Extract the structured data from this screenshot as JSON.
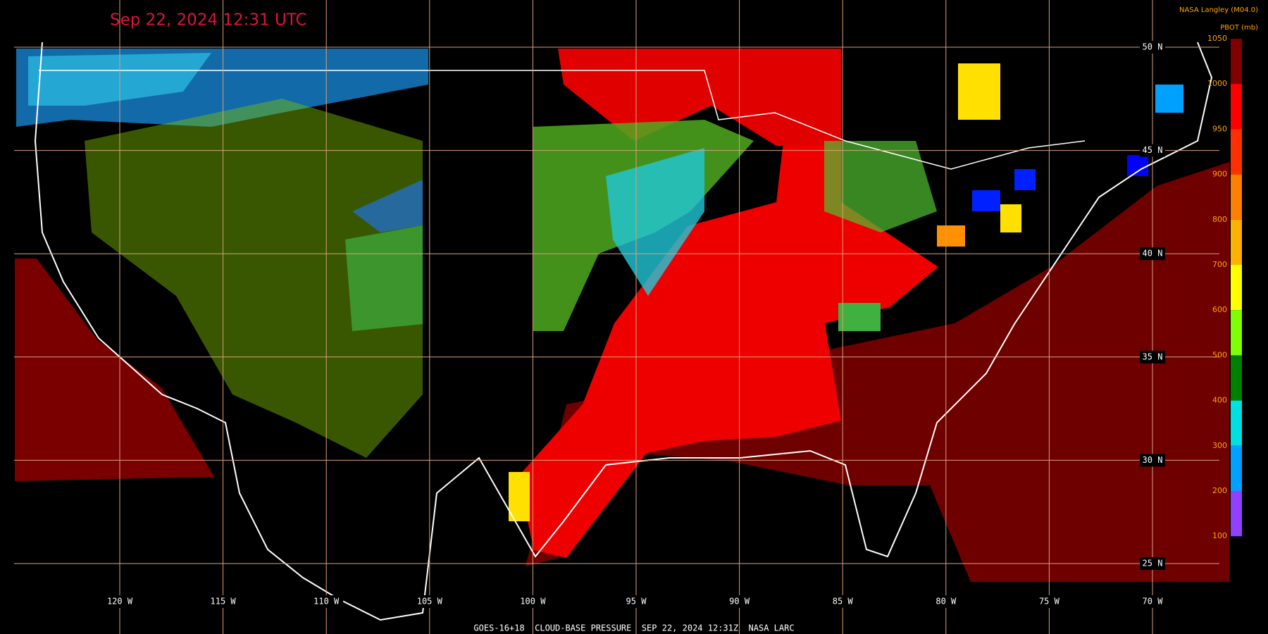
{
  "header": {
    "timestamp": "Sep 22, 2024 12:31 UTC",
    "credit": "NASA Langley (M04.0)"
  },
  "legend": {
    "title": "PBOT (mb)",
    "labels": [
      1050,
      1000,
      950,
      900,
      800,
      700,
      600,
      500,
      400,
      300,
      200,
      100
    ]
  },
  "map": {
    "latitude_labels": [
      "50 N",
      "45 N",
      "40 N",
      "35 N",
      "30 N",
      "25 N"
    ],
    "longitude_labels": [
      "120 W",
      "115 W",
      "110 W",
      "105 W",
      "100 W",
      "95 W",
      "90 W",
      "85 W",
      "80 W",
      "75 W",
      "70 W"
    ]
  },
  "footer": {
    "caption": "GOES-16+18  CLOUD-BASE PRESSURE  SEP 22, 2024 12:31Z  NASA LARC"
  }
}
